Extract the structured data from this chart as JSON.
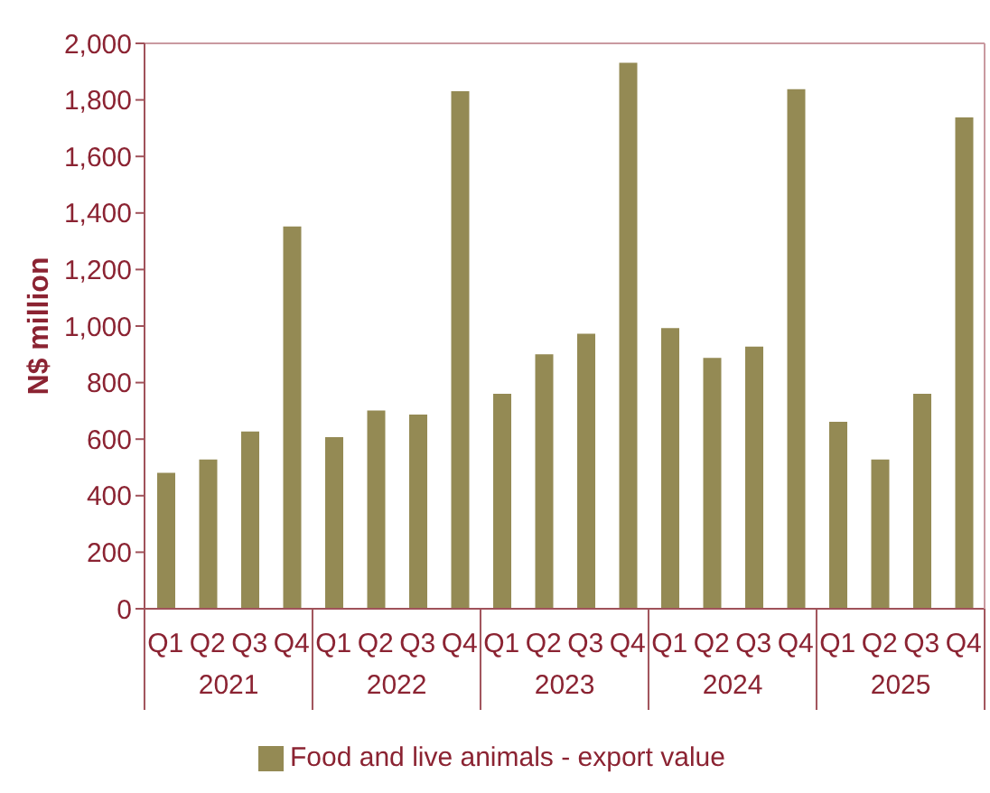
{
  "chart_data": {
    "type": "bar",
    "ylabel": "N$ million",
    "categories": [
      "Q1",
      "Q2",
      "Q3",
      "Q4",
      "Q1",
      "Q2",
      "Q3",
      "Q4",
      "Q1",
      "Q2",
      "Q3",
      "Q4",
      "Q1",
      "Q2",
      "Q3",
      "Q4",
      "Q1",
      "Q2",
      "Q3",
      "Q4"
    ],
    "annotations": [
      "2021",
      "2022",
      "2023",
      "2024",
      "2025"
    ],
    "series": [
      {
        "name": "Food and live animals - export value",
        "color": "#948a54",
        "values": [
          481,
          528,
          627,
          1352,
          607,
          701,
          687,
          1831,
          760,
          900,
          973,
          1931,
          993,
          887,
          927,
          1838,
          661,
          528,
          760,
          1738
        ]
      }
    ],
    "ylim": [
      0,
      2000
    ],
    "yticks": [
      0,
      200,
      400,
      600,
      800,
      {
        "value": 1000,
        "label": "1,000"
      },
      {
        "value": 1200,
        "label": "1,200"
      },
      {
        "value": 1400,
        "label": "1,400"
      },
      {
        "value": 1600,
        "label": "1,600"
      },
      {
        "value": 1800,
        "label": "1,800"
      },
      {
        "value": 2000,
        "label": "2,000"
      }
    ],
    "grid": false,
    "legend": "bottom"
  }
}
